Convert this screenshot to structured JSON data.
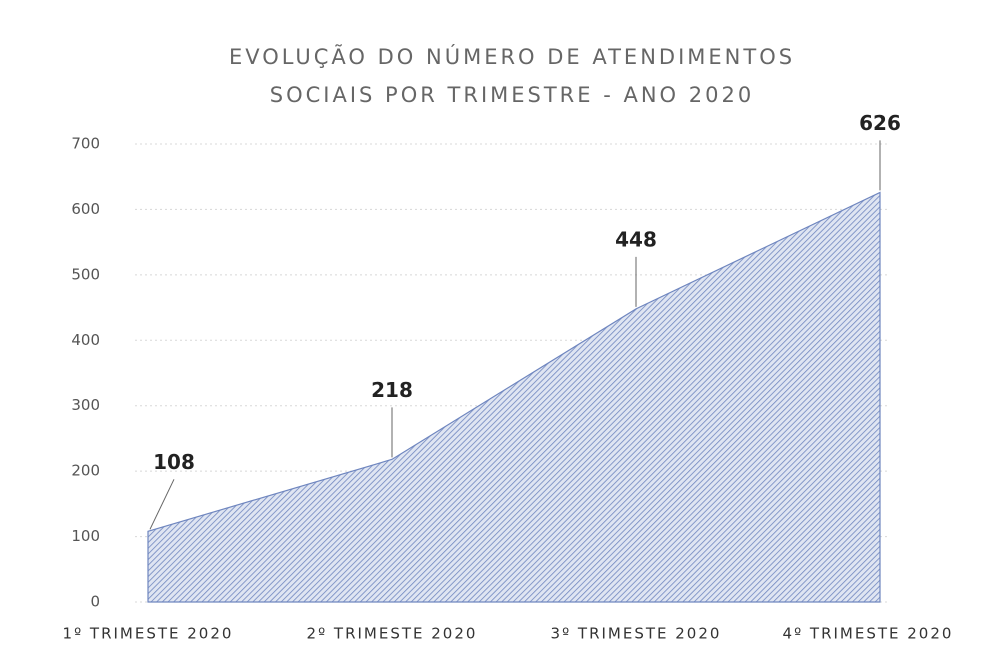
{
  "chart_data": {
    "type": "area",
    "title": [
      "EVOLUÇÃO DO NÚMERO DE ATENDIMENTOS",
      "SOCIAIS POR TRIMESTRE - ANO 2020"
    ],
    "categories": [
      "1º TRIMESTE 2020",
      "2º TRIMESTE 2020",
      "3º TRIMESTE 2020",
      "4º TRIMESTE 2020"
    ],
    "values": [
      108,
      218,
      448,
      626
    ],
    "color": "#6f86bf",
    "ylim": [
      0,
      700
    ],
    "yticks": [
      0,
      100,
      200,
      300,
      400,
      500,
      600,
      700
    ],
    "grid": true
  }
}
